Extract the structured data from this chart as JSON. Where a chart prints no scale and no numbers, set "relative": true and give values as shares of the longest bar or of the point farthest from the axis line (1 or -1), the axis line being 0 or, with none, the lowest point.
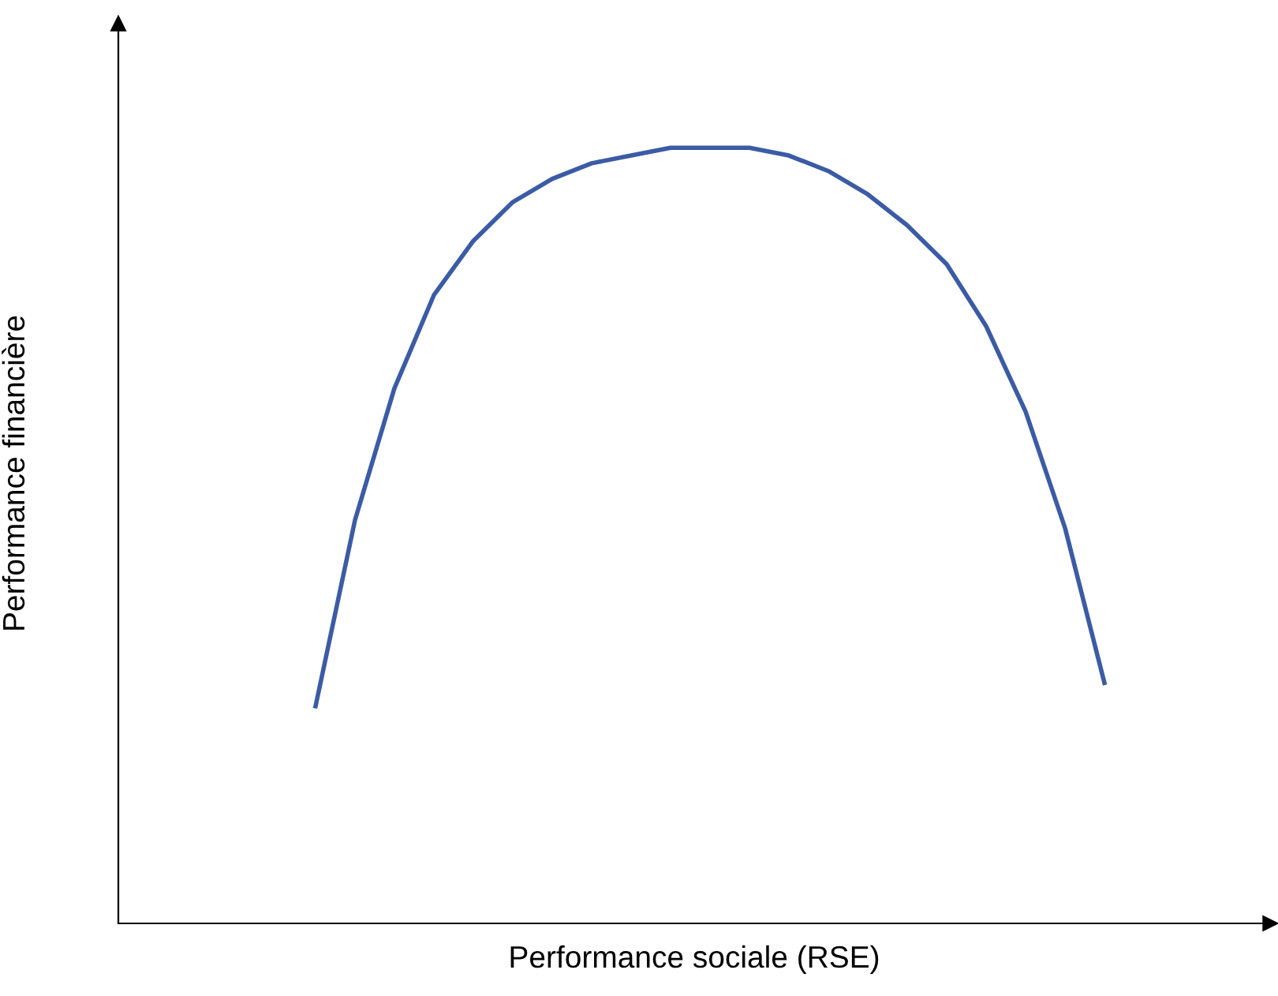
{
  "chart_data": {
    "type": "line",
    "relative": true,
    "xlabel": "Performance sociale (RSE)",
    "ylabel": "Performance financière",
    "categories": [
      null,
      null,
      null,
      null,
      null,
      null,
      null,
      null,
      null,
      null,
      null,
      null,
      null,
      null,
      null,
      null,
      null,
      null,
      null,
      null,
      null,
      null,
      null,
      null,
      null,
      null,
      null,
      null,
      null,
      null
    ],
    "series": [
      {
        "color": "#3b5ba5",
        "values": [
          null,
          null,
          null,
          null,
          null,
          0.28,
          0.52,
          0.69,
          0.81,
          0.88,
          0.93,
          0.96,
          0.98,
          0.99,
          1.0,
          1.0,
          1.0,
          0.99,
          0.97,
          0.94,
          0.9,
          0.85,
          0.77,
          0.66,
          0.51,
          0.31,
          null,
          null,
          null,
          null
        ]
      }
    ],
    "tick_labels": false
  }
}
